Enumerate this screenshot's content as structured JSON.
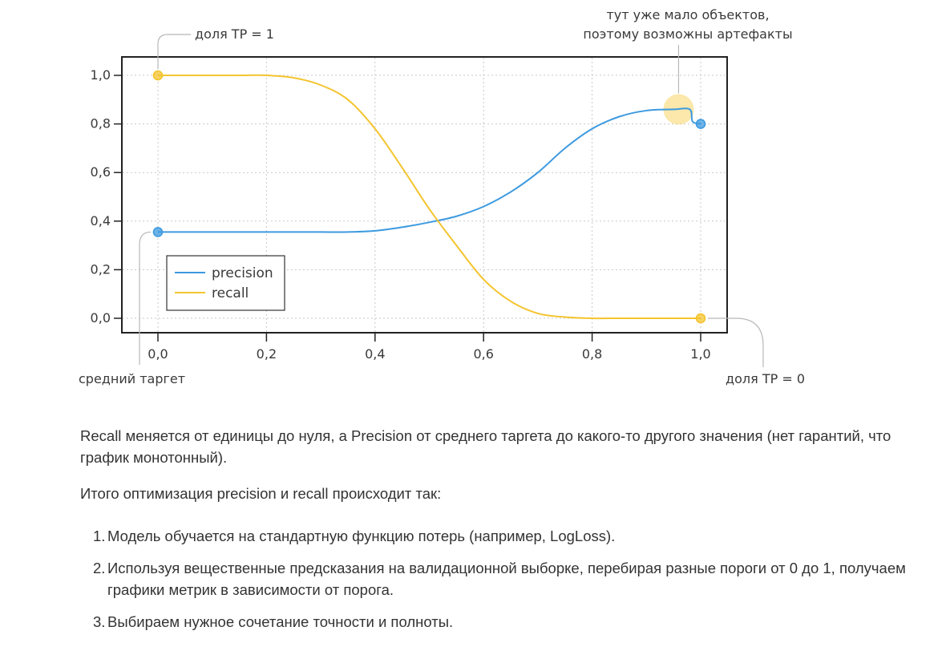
{
  "chart_data": {
    "type": "line",
    "x_ticks": [
      "0,0",
      "0,2",
      "0,4",
      "0,6",
      "0,8",
      "1,0"
    ],
    "y_ticks": [
      "0,0",
      "0,2",
      "0,4",
      "0,6",
      "0,8",
      "1,0"
    ],
    "xlim": [
      0,
      1
    ],
    "ylim": [
      0,
      1
    ],
    "grid": "dotted",
    "legend": "lower-left",
    "series": [
      {
        "name": "precision",
        "color": "#3d9ae0",
        "x": [
          0,
          0.05,
          0.1,
          0.15,
          0.2,
          0.25,
          0.3,
          0.35,
          0.4,
          0.45,
          0.5,
          0.55,
          0.6,
          0.65,
          0.7,
          0.75,
          0.8,
          0.85,
          0.9,
          0.95,
          0.98,
          0.985,
          1.0
        ],
        "y": [
          0.355,
          0.355,
          0.355,
          0.355,
          0.355,
          0.355,
          0.355,
          0.355,
          0.36,
          0.375,
          0.395,
          0.42,
          0.46,
          0.52,
          0.6,
          0.7,
          0.78,
          0.83,
          0.855,
          0.86,
          0.86,
          0.81,
          0.8
        ]
      },
      {
        "name": "recall",
        "color": "#f4c42e",
        "x": [
          0,
          0.05,
          0.1,
          0.15,
          0.2,
          0.25,
          0.3,
          0.35,
          0.4,
          0.45,
          0.5,
          0.55,
          0.6,
          0.65,
          0.7,
          0.75,
          0.8,
          0.85,
          0.9,
          0.95,
          1.0
        ],
        "y": [
          1.0,
          1.0,
          1.0,
          1.0,
          1.0,
          0.99,
          0.96,
          0.9,
          0.78,
          0.62,
          0.45,
          0.3,
          0.16,
          0.07,
          0.02,
          0.005,
          0.0,
          0.0,
          0.0,
          0.0,
          0.0
        ]
      }
    ],
    "annotations": [
      {
        "text": "доля TP = 1",
        "target_x": 0,
        "target_y": 1.0
      },
      {
        "lines": [
          "тут уже мало объектов,",
          "поэтому возможны артефакты"
        ],
        "target_x": 0.98,
        "target_y": 0.86
      },
      {
        "text": "средний таргет",
        "target_x": 0,
        "target_y": 0.355
      },
      {
        "text": "доля TP = 0",
        "target_x": 1.0,
        "target_y": 0.0
      }
    ]
  },
  "article": {
    "intro": "Recall меняется от единицы до нуля, а Precision от среднего таргета до какого-то другого значения (нет гарантий, что график монотонный).",
    "lead": "Итого оптимизация precision и recall происходит так:",
    "steps": [
      {
        "num": "1.",
        "text": "Модель обучается на стандартную функцию потерь (например, LogLoss)."
      },
      {
        "num": "2.",
        "text": "Используя вещественные предсказания на валидационной выборке, перебирая разные пороги от 0 до 1, получаем графики метрик в зависимости от порога."
      },
      {
        "num": "3.",
        "text": "Выбираем нужное сочетание точности и полноты."
      }
    ]
  }
}
